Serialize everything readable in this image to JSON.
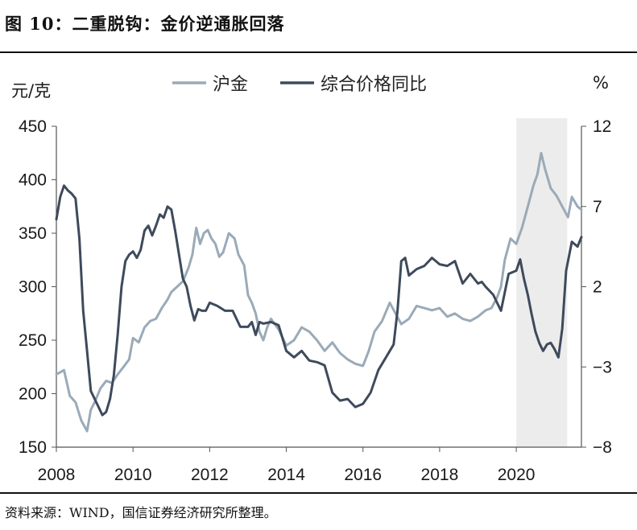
{
  "header": {
    "title": "图 10：二重脱钩：金价逆通胀回落"
  },
  "footer": {
    "source": "资料来源：WIND，国信证券经济研究所整理。"
  },
  "chart_data": {
    "type": "line",
    "title": "图 10：二重脱钩：金价逆通胀回落",
    "ylabel_left": "元/克",
    "ylabel_right": "%",
    "ylim_left": [
      150,
      450
    ],
    "ylim_right": [
      -8,
      12
    ],
    "yticks_left": [
      150,
      200,
      250,
      300,
      350,
      400,
      450
    ],
    "yticks_right": [
      -8,
      -3,
      2,
      7,
      12
    ],
    "xlim": [
      2008,
      2021.7
    ],
    "xticks": [
      2008,
      2010,
      2012,
      2014,
      2016,
      2018,
      2020
    ],
    "legend_position": "top",
    "shaded_region": {
      "from": 2020.0,
      "to": 2021.33,
      "color": "#ececec"
    },
    "series": [
      {
        "name": "沪金",
        "axis": "left",
        "color": "#9aaab8",
        "x": [
          2008.0,
          2008.2,
          2008.35,
          2008.5,
          2008.65,
          2008.8,
          2008.9,
          2009.0,
          2009.15,
          2009.3,
          2009.45,
          2009.6,
          2009.75,
          2009.9,
          2010.0,
          2010.15,
          2010.3,
          2010.45,
          2010.6,
          2010.75,
          2010.9,
          2011.0,
          2011.15,
          2011.3,
          2011.45,
          2011.55,
          2011.65,
          2011.75,
          2011.85,
          2011.95,
          2012.05,
          2012.15,
          2012.25,
          2012.35,
          2012.5,
          2012.65,
          2012.75,
          2012.9,
          2013.0,
          2013.1,
          2013.2,
          2013.3,
          2013.4,
          2013.5,
          2013.6,
          2013.8,
          2014.0,
          2014.2,
          2014.4,
          2014.6,
          2014.8,
          2015.0,
          2015.2,
          2015.4,
          2015.6,
          2015.8,
          2016.0,
          2016.15,
          2016.3,
          2016.5,
          2016.7,
          2016.85,
          2017.0,
          2017.2,
          2017.4,
          2017.6,
          2017.8,
          2018.0,
          2018.2,
          2018.4,
          2018.6,
          2018.8,
          2019.0,
          2019.2,
          2019.35,
          2019.5,
          2019.6,
          2019.7,
          2019.85,
          2020.0,
          2020.15,
          2020.3,
          2020.45,
          2020.55,
          2020.65,
          2020.75,
          2020.9,
          2021.05,
          2021.2,
          2021.35,
          2021.45,
          2021.6,
          2021.7
        ],
        "values": [
          218,
          222,
          198,
          192,
          175,
          165,
          185,
          192,
          205,
          212,
          210,
          218,
          225,
          232,
          252,
          248,
          262,
          268,
          270,
          280,
          288,
          295,
          300,
          305,
          318,
          330,
          355,
          340,
          350,
          353,
          345,
          340,
          328,
          332,
          350,
          345,
          330,
          320,
          292,
          285,
          275,
          258,
          250,
          262,
          270,
          260,
          245,
          250,
          262,
          258,
          250,
          240,
          248,
          238,
          232,
          228,
          226,
          240,
          258,
          268,
          285,
          275,
          265,
          270,
          282,
          280,
          278,
          280,
          272,
          275,
          270,
          268,
          272,
          278,
          280,
          290,
          300,
          325,
          345,
          340,
          355,
          375,
          395,
          405,
          425,
          410,
          392,
          385,
          375,
          365,
          384,
          375,
          372
        ]
      },
      {
        "name": "综合价格同比",
        "axis": "right",
        "color": "#3e4a5c",
        "x": [
          2008.0,
          2008.1,
          2008.2,
          2008.3,
          2008.4,
          2008.5,
          2008.6,
          2008.7,
          2008.8,
          2008.9,
          2009.0,
          2009.1,
          2009.2,
          2009.3,
          2009.4,
          2009.5,
          2009.6,
          2009.7,
          2009.8,
          2009.9,
          2010.0,
          2010.1,
          2010.2,
          2010.3,
          2010.4,
          2010.5,
          2010.6,
          2010.7,
          2010.8,
          2010.9,
          2011.0,
          2011.1,
          2011.2,
          2011.3,
          2011.4,
          2011.5,
          2011.6,
          2011.7,
          2011.8,
          2011.9,
          2012.0,
          2012.2,
          2012.4,
          2012.6,
          2012.8,
          2013.0,
          2013.1,
          2013.2,
          2013.3,
          2013.4,
          2013.6,
          2013.8,
          2014.0,
          2014.2,
          2014.4,
          2014.6,
          2014.8,
          2015.0,
          2015.2,
          2015.4,
          2015.6,
          2015.8,
          2016.0,
          2016.2,
          2016.4,
          2016.6,
          2016.8,
          2016.9,
          2017.0,
          2017.1,
          2017.2,
          2017.4,
          2017.6,
          2017.8,
          2018.0,
          2018.2,
          2018.4,
          2018.6,
          2018.8,
          2019.0,
          2019.1,
          2019.2,
          2019.4,
          2019.6,
          2019.8,
          2020.0,
          2020.1,
          2020.2,
          2020.3,
          2020.4,
          2020.5,
          2020.6,
          2020.7,
          2020.8,
          2020.9,
          2021.0,
          2021.1,
          2021.2,
          2021.3,
          2021.45,
          2021.6,
          2021.7
        ],
        "values": [
          6.2,
          7.6,
          8.3,
          8.0,
          7.8,
          7.5,
          5.0,
          0.5,
          -2.0,
          -4.5,
          -5.0,
          -5.5,
          -6.0,
          -5.8,
          -5.0,
          -3.5,
          -1.0,
          2.0,
          3.6,
          4.0,
          4.2,
          3.8,
          4.3,
          5.5,
          5.8,
          5.2,
          5.8,
          6.5,
          6.3,
          7.0,
          6.8,
          5.5,
          4.0,
          2.5,
          2.0,
          0.8,
          -0.1,
          0.6,
          0.5,
          0.5,
          1.0,
          0.8,
          0.5,
          0.5,
          -0.5,
          -0.5,
          -0.2,
          -1.0,
          -0.2,
          -0.3,
          -0.2,
          -0.4,
          -2.0,
          -2.4,
          -2.0,
          -2.6,
          -2.7,
          -2.9,
          -4.6,
          -5.1,
          -5.0,
          -5.5,
          -5.3,
          -4.6,
          -3.2,
          -2.4,
          -1.6,
          0.5,
          3.6,
          3.8,
          2.7,
          3.1,
          3.3,
          3.8,
          3.4,
          3.3,
          3.6,
          2.2,
          2.8,
          2.2,
          2.3,
          2.0,
          1.5,
          0.5,
          2.8,
          3.0,
          3.7,
          2.5,
          1.5,
          0.3,
          -0.8,
          -1.5,
          -2.0,
          -1.6,
          -1.5,
          -1.9,
          -2.4,
          -0.6,
          3.0,
          4.8,
          4.5,
          5.1
        ]
      }
    ]
  }
}
